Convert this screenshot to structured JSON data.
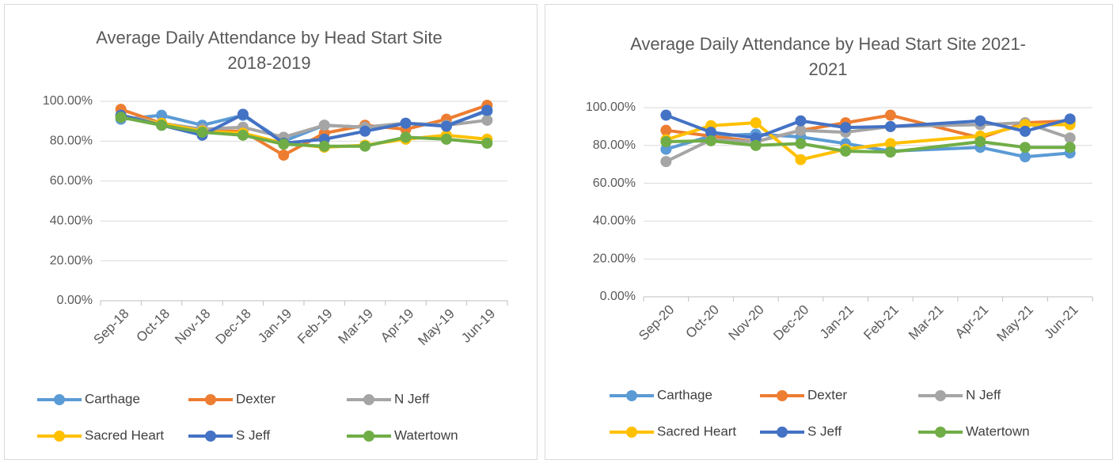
{
  "chart_data": [
    {
      "type": "line",
      "title": "Average Daily Attendance by Head Start Site 2018-2019",
      "categories": [
        "Sep-18",
        "Oct-18",
        "Nov-18",
        "Dec-18",
        "Jan-19",
        "Feb-19",
        "Mar-19",
        "Apr-19",
        "May-19",
        "Jun-19"
      ],
      "series": [
        {
          "name": "Carthage",
          "color": "#5b9bd5",
          "values": [
            91,
            93,
            88,
            93,
            80,
            88,
            87,
            89,
            88,
            95
          ]
        },
        {
          "name": "Dexter",
          "color": "#ed7d31",
          "values": [
            96,
            89,
            85,
            85,
            73,
            84,
            88,
            86,
            91,
            98
          ]
        },
        {
          "name": "N Jeff",
          "color": "#a5a5a5",
          "values": [
            93,
            89,
            86,
            87,
            82,
            88,
            87,
            89,
            88,
            90.5
          ]
        },
        {
          "name": "Sacred Heart",
          "color": "#ffc000",
          "values": [
            92,
            89,
            85,
            84,
            79,
            77,
            78,
            81,
            83,
            81
          ]
        },
        {
          "name": "S Jeff",
          "color": "#4472c4",
          "values": [
            93,
            88,
            83,
            93.5,
            79,
            81,
            85,
            89,
            87.5,
            95.5
          ]
        },
        {
          "name": "Watertown",
          "color": "#70ad47",
          "values": [
            92,
            88,
            84.5,
            83,
            78.5,
            77.5,
            77.5,
            82,
            81,
            79
          ]
        }
      ],
      "ylim": [
        0,
        100
      ],
      "yticks": [
        {
          "value": 0,
          "label": "0.00%"
        },
        {
          "value": 20,
          "label": "20.00%"
        },
        {
          "value": 40,
          "label": "40.00%"
        },
        {
          "value": 60,
          "label": "60.00%"
        },
        {
          "value": 80,
          "label": "80.00%"
        },
        {
          "value": 100,
          "label": "100.00%"
        }
      ],
      "grid": true,
      "legend": "bottom"
    },
    {
      "type": "line",
      "title": "Average Daily Attendance by Head Start Site 2021-2021",
      "categories": [
        "Sep-20",
        "Oct-20",
        "Nov-20",
        "Dec-20",
        "Jan-21",
        "Feb-21",
        "Mar-21",
        "Apr-21",
        "May-21",
        "Jun-21"
      ],
      "series": [
        {
          "name": "Carthage",
          "color": "#5b9bd5",
          "values": [
            78,
            85,
            86,
            84.5,
            81,
            77,
            null,
            79,
            74,
            76
          ]
        },
        {
          "name": "Dexter",
          "color": "#ed7d31",
          "values": [
            88,
            85,
            82,
            88,
            92,
            96,
            null,
            84,
            92,
            93
          ]
        },
        {
          "name": "N Jeff",
          "color": "#a5a5a5",
          "values": [
            71.5,
            83,
            82,
            88,
            87,
            90,
            null,
            91,
            92,
            84
          ]
        },
        {
          "name": "Sacred Heart",
          "color": "#ffc000",
          "values": [
            83,
            90.5,
            92,
            72.5,
            78,
            81,
            null,
            85,
            91,
            91
          ]
        },
        {
          "name": "S Jeff",
          "color": "#4472c4",
          "values": [
            96,
            87,
            84,
            93,
            89.5,
            90,
            null,
            93,
            87.5,
            94
          ]
        },
        {
          "name": "Watertown",
          "color": "#70ad47",
          "values": [
            82,
            82.5,
            80,
            81,
            77,
            76.5,
            null,
            82,
            79,
            79
          ]
        }
      ],
      "ylim": [
        0,
        100
      ],
      "yticks": [
        {
          "value": 0,
          "label": "0.00%"
        },
        {
          "value": 20,
          "label": "20.00%"
        },
        {
          "value": 40,
          "label": "40.00%"
        },
        {
          "value": 60,
          "label": "60.00%"
        },
        {
          "value": 80,
          "label": "80.00%"
        },
        {
          "value": 100,
          "label": "100.00%"
        }
      ],
      "grid": true,
      "legend": "bottom",
      "connect_gaps": true
    }
  ]
}
